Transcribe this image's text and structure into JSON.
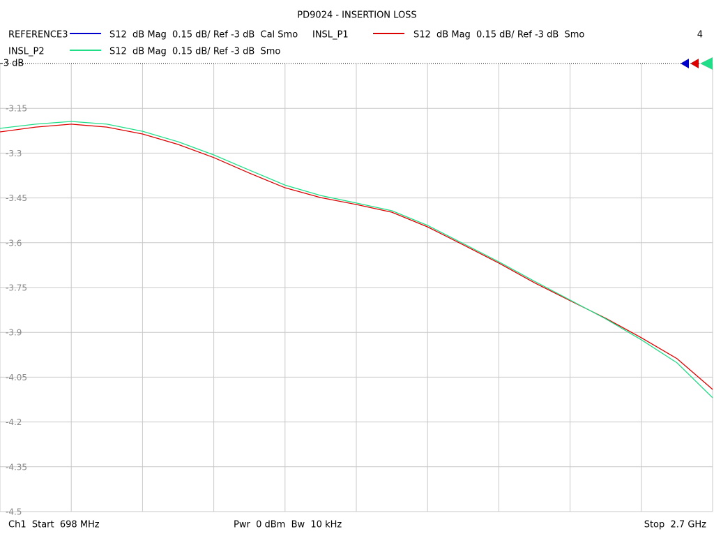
{
  "chart_data": {
    "type": "line",
    "title": "PD9024 - INSERTION LOSS",
    "channel_number": "4",
    "x": [
      698,
      798.1,
      898.2,
      998.3,
      1098.4,
      1198.5,
      1298.6,
      1398.7,
      1498.8,
      1598.9,
      1699,
      1799.1,
      1899.2,
      1999.3,
      2099.4,
      2199.5,
      2299.6,
      2399.7,
      2499.8,
      2599.9,
      2700
    ],
    "xlim": [
      698,
      2700
    ],
    "x_divisions": 10,
    "ylim": [
      -4.5,
      -3
    ],
    "yticks": [
      {
        "value": -3,
        "label": "-3 dB"
      },
      -3.15,
      -3.3,
      -3.45,
      -3.6,
      -3.75,
      -3.9,
      -4.05,
      -4.2,
      -4.35,
      -4.5
    ],
    "grid": true,
    "series": [
      {
        "name": "REFERENCE3",
        "label": "S12  dB Mag  0.15 dB/ Ref -3 dB  Cal Smo",
        "color": "#0000cc",
        "values": [
          null,
          null,
          null,
          null,
          null,
          null,
          null,
          null,
          null,
          null,
          null,
          null,
          null,
          null,
          null,
          null,
          null,
          null,
          null,
          null,
          null
        ]
      },
      {
        "name": "INSL_P1",
        "label": "S12  dB Mag  0.15 dB/ Ref -3 dB  Smo",
        "color": "#dd0000",
        "values": [
          -3.229,
          -3.213,
          -3.203,
          -3.213,
          -3.236,
          -3.271,
          -3.315,
          -3.367,
          -3.416,
          -3.449,
          -3.472,
          -3.498,
          -3.547,
          -3.607,
          -3.668,
          -3.734,
          -3.794,
          -3.853,
          -3.918,
          -3.988,
          -4.091
        ]
      },
      {
        "name": "INSL_P2",
        "label": "S12  dB Mag  0.15 dB/ Ref -3 dB  Smo",
        "color": "#22dd88",
        "values": [
          -3.217,
          -3.203,
          -3.194,
          -3.203,
          -3.227,
          -3.262,
          -3.306,
          -3.357,
          -3.407,
          -3.442,
          -3.467,
          -3.493,
          -3.542,
          -3.603,
          -3.664,
          -3.729,
          -3.792,
          -3.855,
          -3.925,
          -4.002,
          -4.119
        ]
      }
    ],
    "footer": {
      "start": "Ch1  Start  698 MHz",
      "power": "Pwr  0 dBm  Bw  10 kHz",
      "stop": "Stop  2.7 GHz"
    }
  }
}
